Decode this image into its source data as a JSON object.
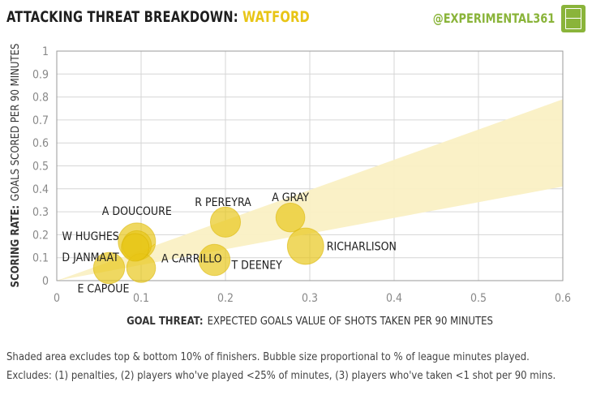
{
  "header": {
    "title": "ATTACKING THREAT BREAKDOWN:",
    "team": "WATFORD",
    "handle": "@EXPERIMENTAL361"
  },
  "notes": [
    "Shaded area excludes top & bottom 10% of finishers. Bubble size proportional to % of league minutes played.",
    "Excludes: (1) penalties, (2) players who've played <25% of minutes, (3) players who've taken <1 shot per 90 mins."
  ],
  "colors": {
    "bubble": "#e8c516",
    "bubble_stroke": "#d9b400",
    "band": "#faf0c4",
    "accent": "#e8c516",
    "brand": "#8ab43a"
  },
  "chart_data": {
    "type": "scatter",
    "xlabel_bold": "GOAL THREAT:",
    "xlabel": "EXPECTED GOALS VALUE OF SHOTS TAKEN PER 90 MINUTES",
    "ylabel_bold": "SCORING RATE:",
    "ylabel": "GOALS SCORED PER 90 MINUTES",
    "xlim": [
      0,
      0.6
    ],
    "ylim": [
      0,
      1
    ],
    "xticks": [
      "0",
      "0.1",
      "0.2",
      "0.3",
      "0.4",
      "0.5",
      "0.6"
    ],
    "yticks": [
      "0",
      "0.1",
      "0.2",
      "0.3",
      "0.4",
      "0.5",
      "0.6",
      "0.7",
      "0.8",
      "0.9",
      "1"
    ],
    "grid": true,
    "band": {
      "upper": [
        [
          0,
          0
        ],
        [
          0.6,
          0.79
        ]
      ],
      "lower": [
        [
          0,
          0
        ],
        [
          0.6,
          0.41
        ]
      ]
    },
    "points": [
      {
        "label": "A DOUCOURE",
        "x": 0.095,
        "y": 0.17,
        "size": 1.0
      },
      {
        "label": "W HUGHES",
        "x": 0.095,
        "y": 0.155,
        "size": 0.6
      },
      {
        "label": "D JANMAAT",
        "x": 0.093,
        "y": 0.145,
        "size": 0.55
      },
      {
        "label": "A CARRILLO",
        "x": 0.1,
        "y": 0.055,
        "size": 0.6
      },
      {
        "label": "E CAPOUE",
        "x": 0.062,
        "y": 0.055,
        "size": 0.7
      },
      {
        "label": "R PEREYRA",
        "x": 0.2,
        "y": 0.255,
        "size": 0.65
      },
      {
        "label": "A GRAY",
        "x": 0.277,
        "y": 0.275,
        "size": 0.6
      },
      {
        "label": "T DEENEY",
        "x": 0.187,
        "y": 0.09,
        "size": 0.7
      },
      {
        "label": "RICHARLISON",
        "x": 0.295,
        "y": 0.15,
        "size": 0.95
      }
    ]
  }
}
